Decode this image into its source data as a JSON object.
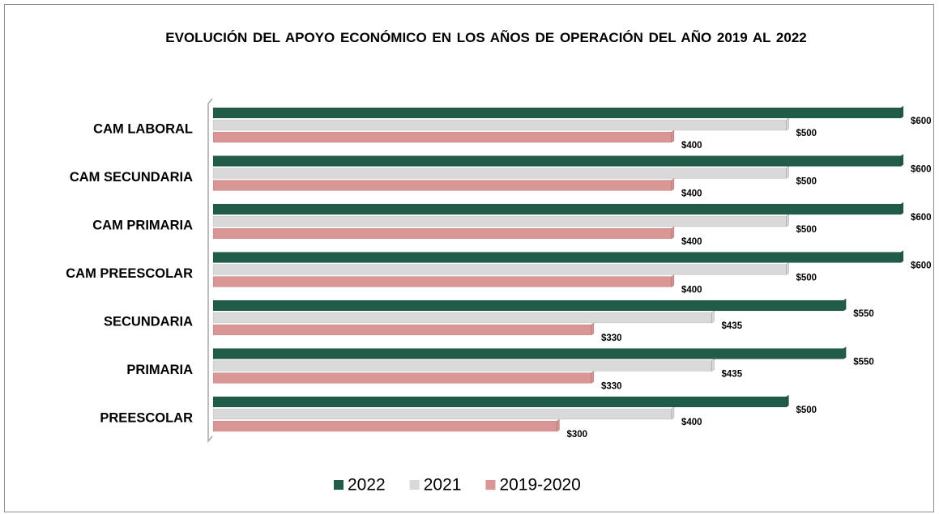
{
  "chart_data": {
    "type": "bar",
    "orientation": "horizontal",
    "title": "EVOLUCIÓN  DEL APOYO ECONÓMICO  EN LOS AÑOS DE OPERACIÓN  DEL AÑO 2019 AL 2022",
    "categories": [
      "CAM LABORAL",
      "CAM SECUNDARIA",
      "CAM PRIMARIA",
      "CAM PREESCOLAR",
      "SECUNDARIA",
      "PRIMARIA",
      "PREESCOLAR"
    ],
    "series": [
      {
        "name": "2022",
        "color": "#215c4b",
        "values": [
          600,
          600,
          600,
          600,
          550,
          550,
          500
        ],
        "value_labels": [
          "$600",
          "$600",
          "$600",
          "$600",
          "$550",
          "$550",
          "$500"
        ]
      },
      {
        "name": "2021",
        "color": "#d9d9d9",
        "values": [
          500,
          500,
          500,
          500,
          435,
          435,
          400
        ],
        "value_labels": [
          "$500",
          "$500",
          "$500",
          "$500",
          "$435",
          "$435",
          "$400"
        ]
      },
      {
        "name": "2019-2020",
        "color": "#d99694",
        "values": [
          400,
          400,
          400,
          400,
          330,
          330,
          300
        ],
        "value_labels": [
          "$400",
          "$400",
          "$400",
          "$400",
          "$330",
          "$330",
          "$300"
        ]
      }
    ],
    "xlim": [
      0,
      600
    ],
    "legend": "bottom"
  }
}
